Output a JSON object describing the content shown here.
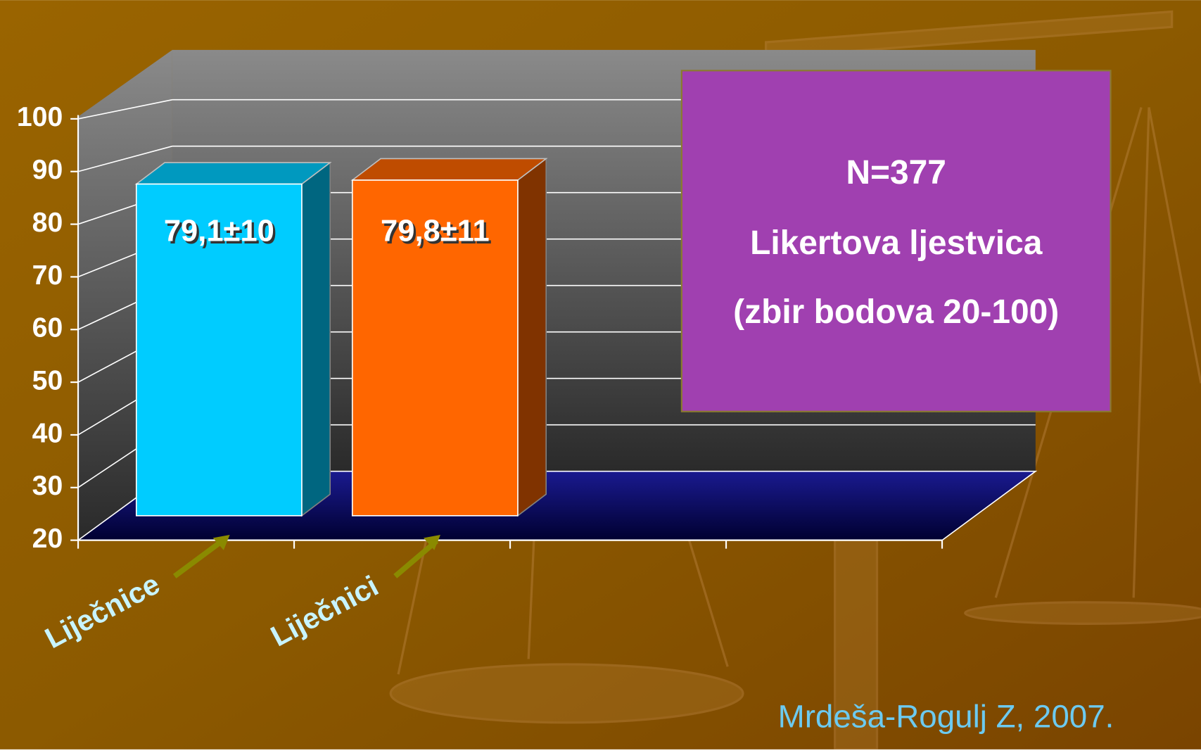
{
  "chart_data": {
    "type": "bar3d",
    "categories": [
      "Liječnice",
      "Liječnici"
    ],
    "values": [
      79.1,
      79.8
    ],
    "value_labels": [
      "79,1±10",
      "79,8±11"
    ],
    "colors": [
      "#00ccff",
      "#ff6600"
    ],
    "ylim": [
      20,
      100
    ],
    "yticks": [
      20,
      30,
      40,
      50,
      60,
      70,
      80,
      90,
      100
    ],
    "grid": true,
    "annotation": [
      "N=377",
      "Likertova ljestvica",
      "(zbir bodova 20-100)"
    ],
    "source": "Mrdeša-Rogulj Z, 2007."
  }
}
